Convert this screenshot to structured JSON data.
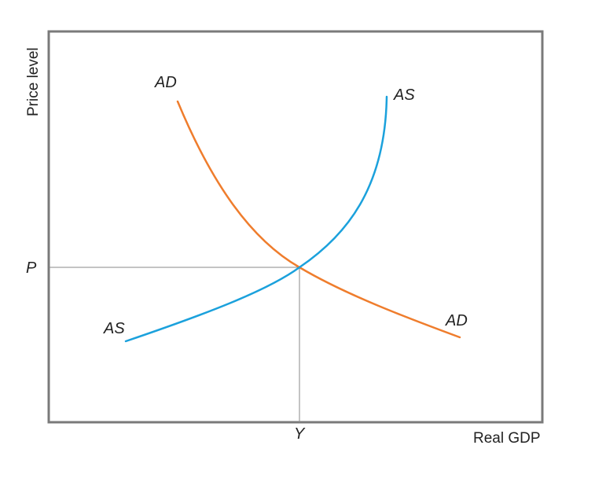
{
  "axes": {
    "y_title": "Price level",
    "x_title": "Real GDP",
    "y_marker": "P",
    "x_marker": "Y"
  },
  "curves": {
    "ad": {
      "label_top": "AD",
      "label_bottom": "AD",
      "color": "#ef7d2d"
    },
    "as": {
      "label_top": "AS",
      "label_bottom": "AS",
      "color": "#1ba1dc"
    }
  },
  "colors": {
    "frame": "#7a7a7a",
    "guide": "#8a8a8a"
  }
}
